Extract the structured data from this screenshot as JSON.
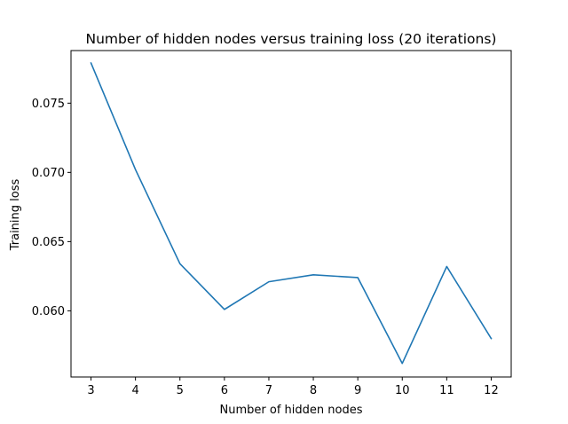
{
  "chart_data": {
    "type": "line",
    "title": "Number of hidden nodes versus training loss (20 iterations)",
    "xlabel": "Number of hidden nodes",
    "ylabel": "Training loss",
    "x": [
      3,
      4,
      5,
      6,
      7,
      8,
      9,
      10,
      11,
      12
    ],
    "x_ticks": [
      "3",
      "4",
      "5",
      "6",
      "7",
      "8",
      "9",
      "10",
      "11",
      "12"
    ],
    "y_ticks": [
      0.06,
      0.065,
      0.07,
      0.075
    ],
    "y_tick_labels": [
      "0.060",
      "0.065",
      "0.070",
      "0.075"
    ],
    "xlim": [
      2.55,
      12.45
    ],
    "ylim": [
      0.05522,
      0.0788
    ],
    "grid": false,
    "series": [
      {
        "color": "#1f77b4",
        "values": [
          0.0779,
          0.0702,
          0.0634,
          0.0601,
          0.0621,
          0.0626,
          0.0624,
          0.0562,
          0.0632,
          0.058
        ]
      }
    ]
  }
}
